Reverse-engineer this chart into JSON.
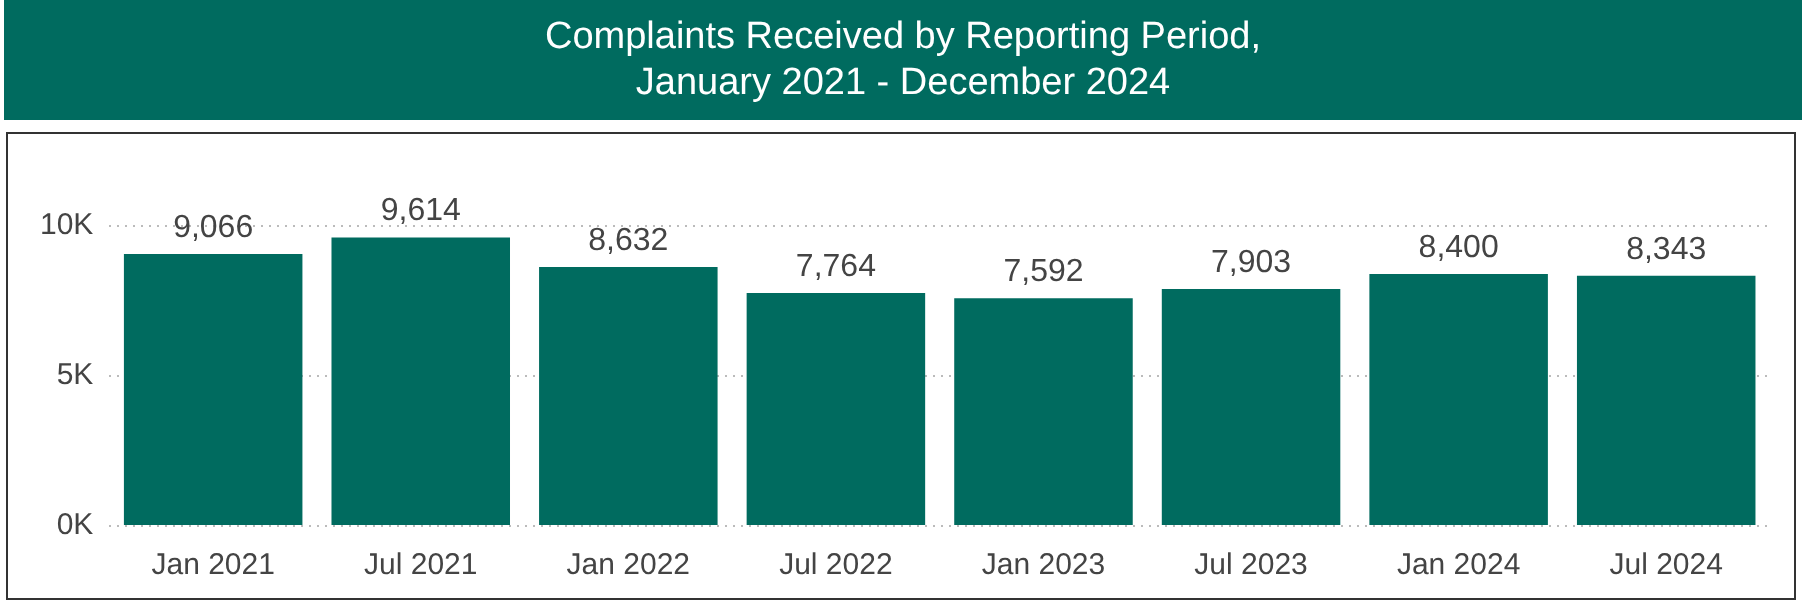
{
  "chart_data": {
    "type": "bar",
    "title": "Complaints Received by Reporting Period, January 2021 - December 2024",
    "categories": [
      "Jan 2021",
      "Jul 2021",
      "Jan 2022",
      "Jul 2022",
      "Jan 2023",
      "Jul 2023",
      "Jan 2024",
      "Jul 2024"
    ],
    "values": [
      9066,
      9614,
      8632,
      7764,
      7592,
      7903,
      8400,
      8343
    ],
    "color": "#006b5f",
    "ylim": [
      0,
      10000
    ],
    "yticks": [
      {
        "value": 0,
        "label": "0K"
      },
      {
        "value": 5000,
        "label": "5K"
      },
      {
        "value": 10000,
        "label": "10K"
      }
    ],
    "value_labels": [
      "9,066",
      "9,614",
      "8,632",
      "7,764",
      "7,592",
      "7,903",
      "8,400",
      "8,343"
    ],
    "grid": "y",
    "legend": false
  }
}
